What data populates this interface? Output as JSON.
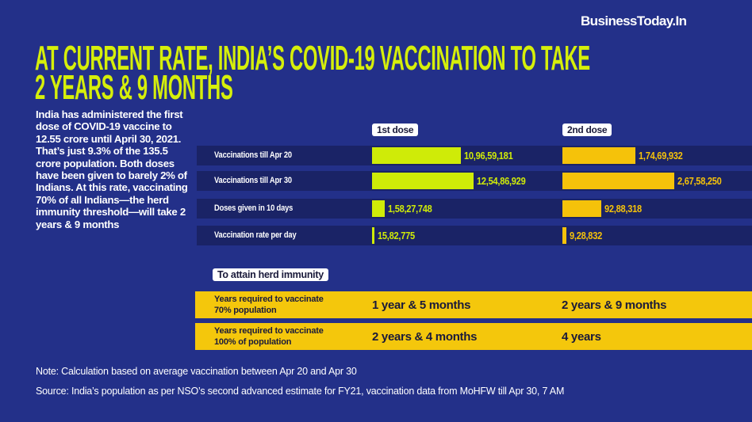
{
  "brand": "BusinessToday.In",
  "title_line1": "AT CURRENT RATE, INDIA’S COVID-19 VACCINATION TO TAKE",
  "title_line2": "2 YEARS & 9 MONTHS",
  "intro": "India has administered the first dose of COVID-19 vaccine to 12.55 crore until April 30, 2021. That’s just 9.3% of the 135.5 crore population. Both doses have been given to barely 2% of Indians. At this rate, vaccinating 70% of all Indians—the herd immunity threshold—will take 2 years & 9 months",
  "colors": {
    "background": "#233089",
    "first_dose": "#cfeb08",
    "second_dose": "#f5c20a",
    "title": "#d6ef0a"
  },
  "chart_data": {
    "type": "bar",
    "series_headers": [
      "1st dose",
      "2nd dose"
    ],
    "rows": [
      {
        "label": "Vaccinations till Apr 20",
        "first": 109659181,
        "first_label": "10,96,59,181",
        "second": 17469932,
        "second_label": "1,74,69,932"
      },
      {
        "label": "Vaccinations till Apr 30",
        "first": 125486929,
        "first_label": "12,54,86,929",
        "second": 26758250,
        "second_label": "2,67,58,250"
      },
      {
        "label": "Doses given in 10 days",
        "first": 15827748,
        "first_label": "1,58,27,748",
        "second": 9288318,
        "second_label": "92,88,318"
      },
      {
        "label": "Vaccination rate per day",
        "first": 1582775,
        "first_label": "15,82,775",
        "second": 928832,
        "second_label": "9,28,832"
      }
    ]
  },
  "herd": {
    "header": "To attain herd immunity",
    "rows": [
      {
        "label_1": "Years required to vaccinate",
        "label_2": "70% population",
        "first": "1 year & 5 months",
        "second": "2 years & 9 months"
      },
      {
        "label_1": "Years required to vaccinate",
        "label_2": "100% of population",
        "first": "2 years & 4 months",
        "second": "4 years"
      }
    ]
  },
  "note": "Note: Calculation based on average vaccination between Apr 20 and Apr 30",
  "source": "Source: India’s population as per NSO’s second advanced estimate for FY21, vaccination data from MoHFW till Apr 30, 7 AM"
}
